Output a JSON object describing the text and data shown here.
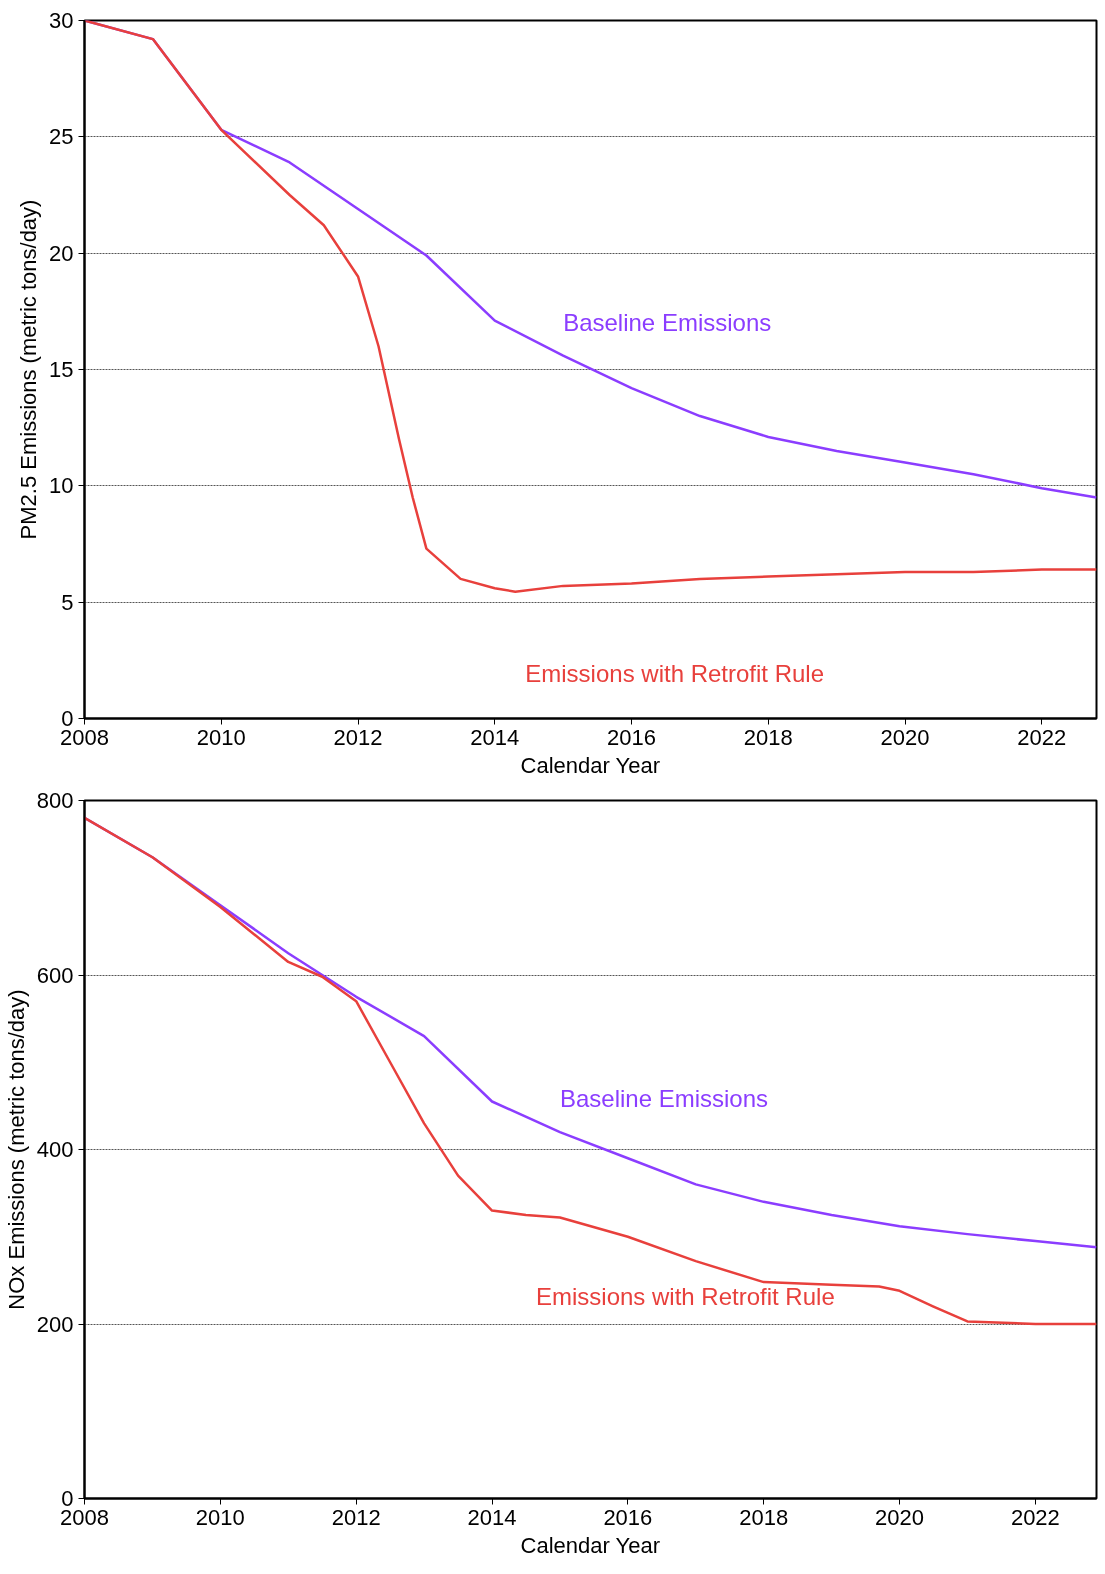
{
  "chart_data": [
    {
      "type": "line",
      "xlabel": "Calendar Year",
      "ylabel": "PM2.5 Emissions (metric tons/day)",
      "xlim": [
        2008,
        2022.8
      ],
      "ylim": [
        0,
        30
      ],
      "xticks": [
        2008,
        2010,
        2012,
        2014,
        2016,
        2018,
        2020,
        2022
      ],
      "yticks": [
        0,
        5,
        10,
        15,
        20,
        25,
        30
      ],
      "grid": "y",
      "series": [
        {
          "name": "Baseline Emissions",
          "color": "#8b3dff",
          "x": [
            2008,
            2009,
            2010,
            2011,
            2012,
            2013,
            2014,
            2015,
            2016,
            2017,
            2018,
            2019,
            2020,
            2021,
            2022,
            2022.8
          ],
          "values": [
            30,
            29.2,
            25.3,
            23.9,
            21.9,
            19.9,
            17.1,
            15.6,
            14.2,
            13.0,
            12.1,
            11.5,
            11.0,
            10.5,
            9.9,
            9.5
          ]
        },
        {
          "name": "Emissions with Retrofit Rule",
          "color": "#e8403c",
          "x": [
            2008,
            2009,
            2010,
            2011,
            2011.5,
            2012,
            2012.3,
            2012.6,
            2012.8,
            2013,
            2013.5,
            2014,
            2014.3,
            2015,
            2016,
            2017,
            2018,
            2019,
            2020,
            2021,
            2022,
            2022.8
          ],
          "values": [
            30,
            29.2,
            25.3,
            22.5,
            21.2,
            19,
            16,
            12,
            9.5,
            7.3,
            6.0,
            5.6,
            5.45,
            5.7,
            5.8,
            6.0,
            6.1,
            6.2,
            6.3,
            6.3,
            6.4,
            6.4
          ]
        }
      ]
    },
    {
      "type": "line",
      "xlabel": "Calendar Year",
      "ylabel": "NOx Emissions (metric tons/day)",
      "xlim": [
        2008,
        2022.9
      ],
      "ylim": [
        0,
        800
      ],
      "xticks": [
        2008,
        2010,
        2012,
        2014,
        2016,
        2018,
        2020,
        2022
      ],
      "yticks": [
        0,
        200,
        400,
        600,
        800
      ],
      "grid": "y",
      "series": [
        {
          "name": "Baseline Emissions",
          "color": "#8b3dff",
          "x": [
            2008,
            2009,
            2010,
            2011,
            2012,
            2013,
            2014,
            2015,
            2016,
            2017,
            2018,
            2019,
            2020,
            2021,
            2022,
            2022.9
          ],
          "values": [
            780,
            735,
            680,
            625,
            575,
            530,
            455,
            420,
            390,
            360,
            340,
            325,
            312,
            303,
            295,
            288
          ]
        },
        {
          "name": "Emissions with Retrofit Rule",
          "color": "#e8403c",
          "x": [
            2008,
            2009,
            2010,
            2011,
            2011.5,
            2012,
            2012.5,
            2013,
            2013.5,
            2014,
            2014.5,
            2015,
            2016,
            2017,
            2018,
            2019,
            2019.7,
            2020,
            2020.5,
            2021,
            2022,
            2022.9
          ],
          "values": [
            780,
            735,
            678,
            615,
            598,
            570,
            500,
            430,
            370,
            330,
            325,
            322,
            300,
            272,
            248,
            245,
            243,
            238,
            220,
            203,
            200,
            200
          ]
        }
      ]
    }
  ]
}
